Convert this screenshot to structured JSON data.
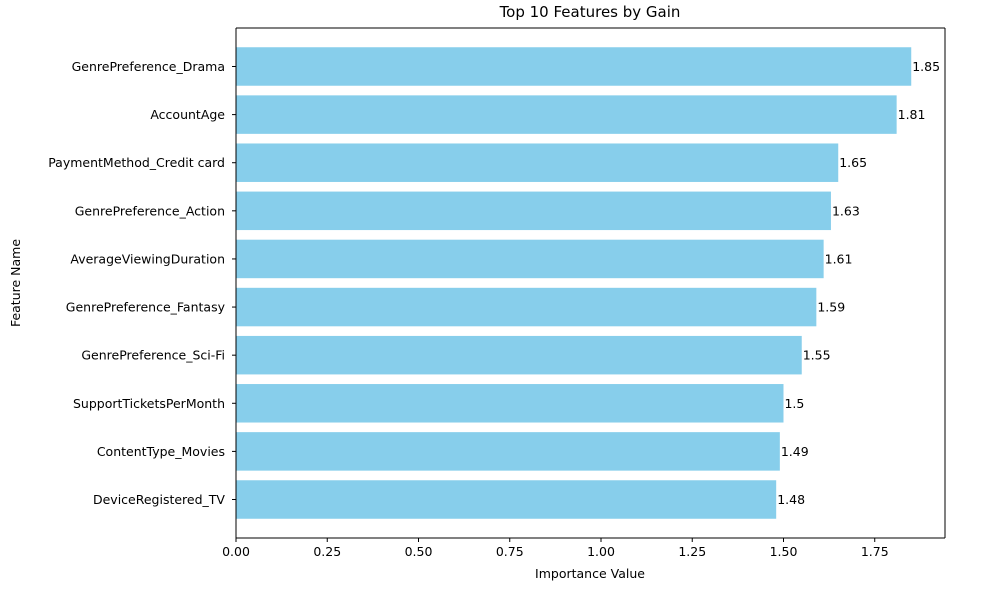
{
  "chart_data": {
    "type": "bar",
    "orientation": "horizontal",
    "title": "Top 10 Features by Gain",
    "xlabel": "Importance Value",
    "ylabel": "Feature Name",
    "categories": [
      "GenrePreference_Drama",
      "AccountAge",
      "PaymentMethod_Credit card",
      "GenrePreference_Action",
      "AverageViewingDuration",
      "GenrePreference_Fantasy",
      "GenrePreference_Sci-Fi",
      "SupportTicketsPerMonth",
      "ContentType_Movies",
      "DeviceRegistered_TV"
    ],
    "values": [
      1.85,
      1.81,
      1.65,
      1.63,
      1.61,
      1.59,
      1.55,
      1.5,
      1.49,
      1.48
    ],
    "data_labels": [
      "1.85",
      "1.81",
      "1.65",
      "1.63",
      "1.61",
      "1.59",
      "1.55",
      "1.5",
      "1.49",
      "1.48"
    ],
    "xlim": [
      0,
      1.9425
    ],
    "xticks": [
      0.0,
      0.25,
      0.5,
      0.75,
      1.0,
      1.25,
      1.5,
      1.75
    ],
    "xtick_labels": [
      "0.00",
      "0.25",
      "0.50",
      "0.75",
      "1.00",
      "1.25",
      "1.50",
      "1.75"
    ],
    "grid": false,
    "bar_color": "#87CEEB"
  }
}
